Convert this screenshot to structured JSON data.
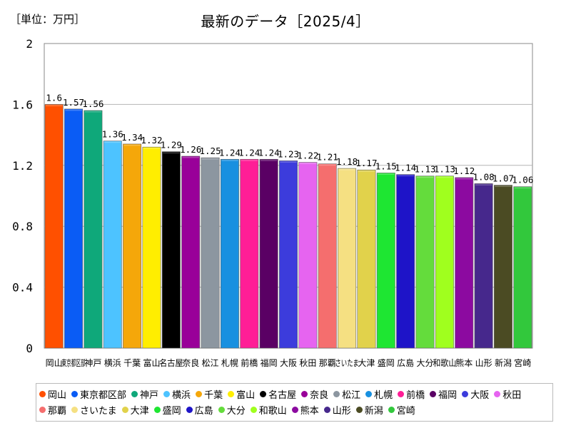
{
  "chart_data": {
    "type": "bar",
    "title": "最新のデータ［2025/4］",
    "unit_label": "［単位：万円］",
    "xlabel": "",
    "ylabel": "",
    "ylim": [
      0,
      2
    ],
    "yticks": [
      "0",
      "0.4",
      "0.8",
      "1.2",
      "1.6",
      "2"
    ],
    "grid": true,
    "legend_position": "bottom",
    "categories": [
      "岡山",
      "東京都区部",
      "神戸",
      "横浜",
      "千葉",
      "富山",
      "名古屋",
      "奈良",
      "松江",
      "札幌",
      "前橋",
      "福岡",
      "大阪",
      "秋田",
      "那覇",
      "さいたま",
      "大津",
      "盛岡",
      "広島",
      "大分",
      "和歌山",
      "熊本",
      "山形",
      "新潟",
      "宮崎"
    ],
    "values": [
      1.6,
      1.57,
      1.56,
      1.36,
      1.34,
      1.32,
      1.29,
      1.26,
      1.25,
      1.24,
      1.24,
      1.24,
      1.23,
      1.22,
      1.21,
      1.18,
      1.17,
      1.15,
      1.14,
      1.13,
      1.13,
      1.12,
      1.08,
      1.07,
      1.06
    ],
    "value_labels": [
      "1.6",
      "1.57",
      "1.56",
      "1.36",
      "1.34",
      "1.32",
      "1.29",
      "1.26",
      "1.25",
      "1.24",
      "1.24",
      "1.24",
      "1.23",
      "1.22",
      "1.21",
      "1.18",
      "1.17",
      "1.15",
      "1.14",
      "1.13",
      "1.13",
      "1.12",
      "1.08",
      "1.07",
      "1.06"
    ],
    "x_tick_labels": [
      "岡山",
      "東京都区部",
      "神戸",
      "横浜",
      "千葉",
      "富山",
      "名古屋",
      "奈良",
      "松江",
      "札幌",
      "前橋",
      "福岡",
      "大阪",
      "秋田",
      "那覇",
      "さいたま",
      "大津",
      "盛岡",
      "広島",
      "大分",
      "和歌山",
      "熊本",
      "山形",
      "新潟",
      "宮崎"
    ],
    "colors": [
      "#ff5000",
      "#0a5cf5",
      "#0fa87a",
      "#4dc3ff",
      "#f5a70a",
      "#ffee00",
      "#000000",
      "#990099",
      "#8c96a0",
      "#1890e0",
      "#ff1e96",
      "#5a0064",
      "#3c3cdc",
      "#e664f0",
      "#f56e6e",
      "#f5e082",
      "#e1d24b",
      "#1ee632",
      "#1e14c8",
      "#64dc3c",
      "#a0ff1e",
      "#8c0aa0",
      "#46288c",
      "#4b4b23",
      "#32c83c"
    ]
  }
}
